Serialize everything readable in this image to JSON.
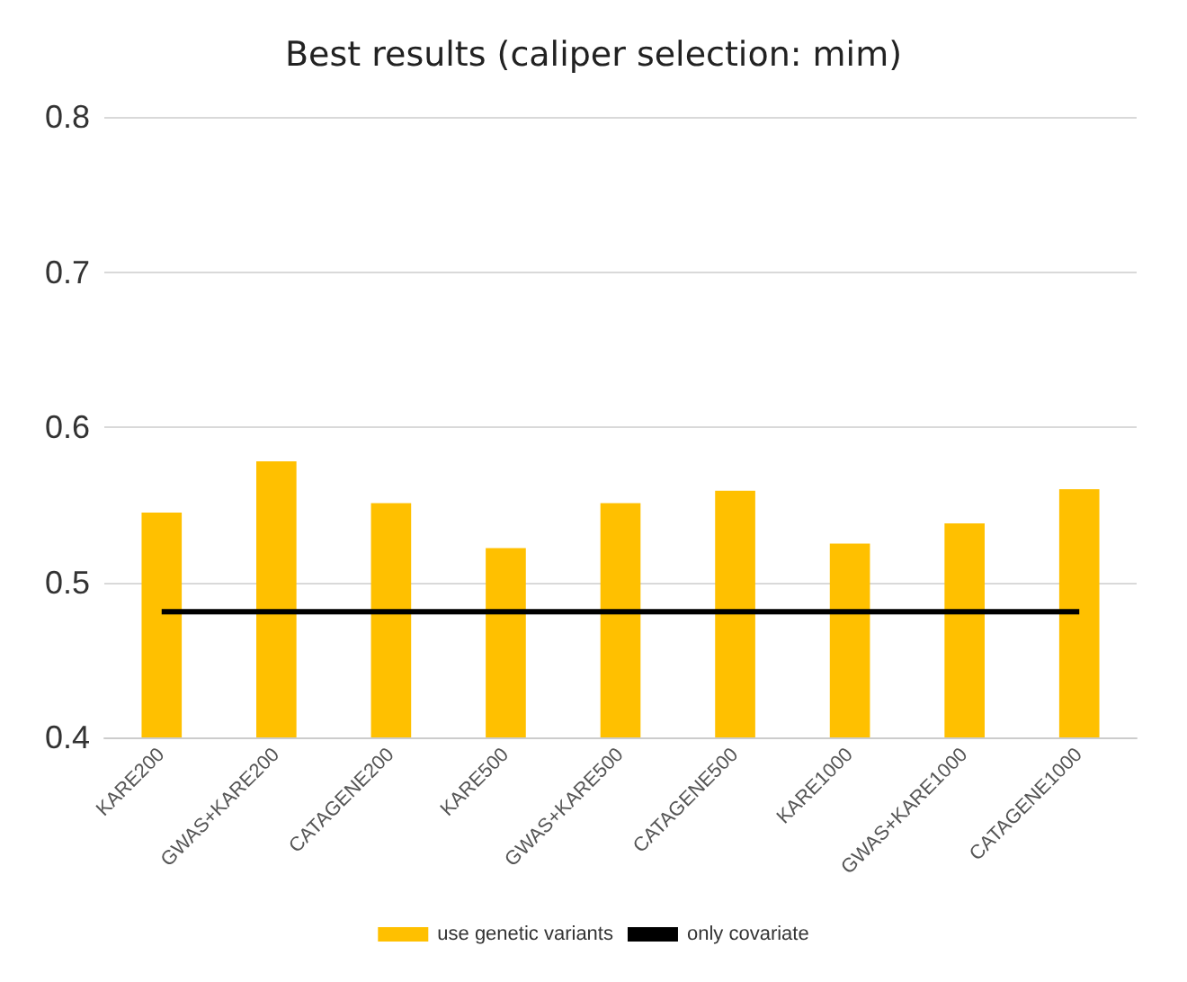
{
  "chart_data": {
    "type": "bar",
    "title": "Best results (caliper selection: mim)",
    "categories": [
      "KARE200",
      "GWAS+KARE200",
      "CATAGENE200",
      "KARE500",
      "GWAS+KARE500",
      "CATAGENE500",
      "KARE1000",
      "GWAS+KARE1000",
      "CATAGENE1000"
    ],
    "series": [
      {
        "name": "use genetic variants",
        "color": "#ffc000",
        "values": [
          0.545,
          0.578,
          0.551,
          0.522,
          0.551,
          0.559,
          0.525,
          0.538,
          0.56
        ]
      },
      {
        "name": "only covariate",
        "type": "line",
        "color": "#000000",
        "values": [
          0.481,
          0.481,
          0.481,
          0.481,
          0.481,
          0.481,
          0.481,
          0.481,
          0.481
        ]
      }
    ],
    "ylim": [
      0.4,
      0.8
    ],
    "yticks": [
      0.4,
      0.5,
      0.6,
      0.7,
      0.8
    ],
    "grid": "y",
    "legend": "bottom",
    "marker": "none"
  }
}
